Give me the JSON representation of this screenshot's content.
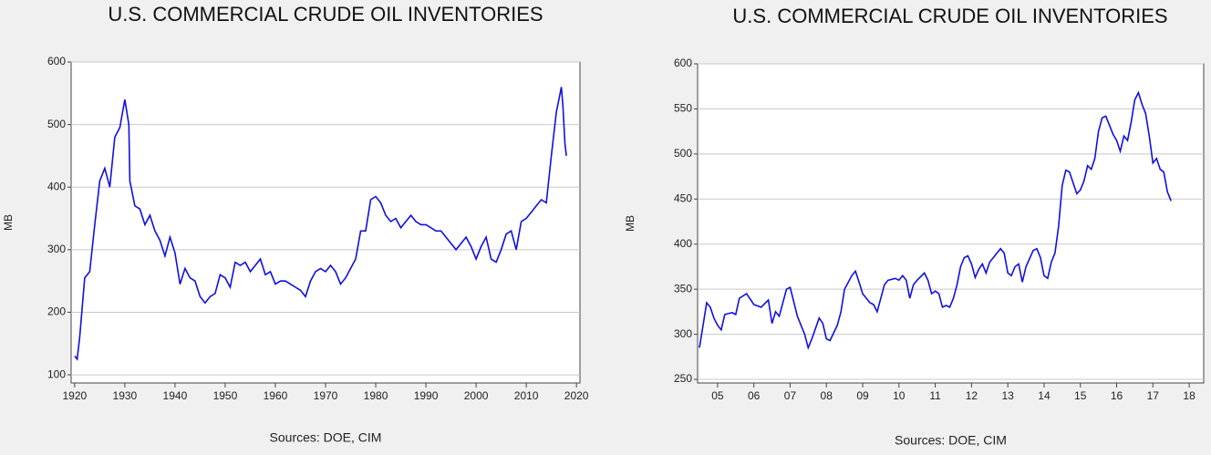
{
  "chart_data": [
    {
      "type": "line",
      "title": "U.S. COMMERCIAL CRUDE OIL INVENTORIES",
      "y_label": "MB",
      "note": "Sources:  DOE, CIM",
      "color": "#1010e0",
      "grid": true,
      "xlim": [
        1919.3,
        2020.7
      ],
      "xticks": [
        1920,
        1930,
        1940,
        1950,
        1960,
        1970,
        1980,
        1990,
        2000,
        2010,
        2020
      ],
      "ylim": [
        87,
        600
      ],
      "yticks": [
        100,
        200,
        300,
        400,
        500,
        600
      ],
      "x": [
        1920,
        1920.5,
        1921,
        1922,
        1923,
        1924,
        1925,
        1926,
        1927,
        1928,
        1929,
        1930,
        1930.8,
        1931,
        1932,
        1933,
        1934,
        1935,
        1936,
        1937,
        1938,
        1939,
        1940,
        1941,
        1942,
        1943,
        1944,
        1945,
        1946,
        1947,
        1948,
        1949,
        1950,
        1951,
        1952,
        1953,
        1954,
        1955,
        1956,
        1957,
        1958,
        1959,
        1960,
        1961,
        1962,
        1963,
        1964,
        1965,
        1966,
        1967,
        1968,
        1969,
        1970,
        1971,
        1972,
        1973,
        1974,
        1975,
        1976,
        1977,
        1978,
        1979,
        1980,
        1981,
        1982,
        1983,
        1984,
        1985,
        1986,
        1987,
        1988,
        1989,
        1990,
        1991,
        1992,
        1993,
        1994,
        1995,
        1996,
        1997,
        1998,
        1999,
        2000,
        2001,
        2002,
        2003,
        2004,
        2005,
        2006,
        2007,
        2008,
        2009,
        2010,
        2011,
        2012,
        2013,
        2014,
        2015,
        2016,
        2016.5,
        2017,
        2017.3,
        2017.7,
        2018
      ],
      "values": [
        130,
        125,
        160,
        255,
        265,
        340,
        410,
        430,
        400,
        480,
        495,
        540,
        500,
        410,
        370,
        365,
        340,
        355,
        330,
        315,
        290,
        320,
        295,
        245,
        270,
        255,
        250,
        225,
        215,
        225,
        230,
        260,
        255,
        240,
        280,
        275,
        280,
        265,
        275,
        285,
        260,
        265,
        245,
        250,
        250,
        245,
        240,
        235,
        225,
        250,
        265,
        270,
        265,
        275,
        265,
        245,
        255,
        270,
        285,
        330,
        330,
        380,
        385,
        375,
        355,
        345,
        350,
        335,
        345,
        355,
        345,
        340,
        340,
        335,
        330,
        330,
        320,
        310,
        300,
        310,
        320,
        305,
        285,
        305,
        320,
        285,
        280,
        300,
        325,
        330,
        300,
        345,
        350,
        360,
        370,
        380,
        375,
        450,
        520,
        540,
        560,
        530,
        470,
        450
      ]
    },
    {
      "type": "line",
      "title": "U.S. COMMERCIAL CRUDE OIL INVENTORIES",
      "y_label": "MB",
      "note": "Sources:  DOE, CIM",
      "color": "#1010e0",
      "grid": true,
      "xlim": [
        2004.95,
        2018.9
      ],
      "xticks": [
        {
          "value": 2005.5,
          "label": "05"
        },
        {
          "value": 2006.5,
          "label": "06"
        },
        {
          "value": 2007.5,
          "label": "07"
        },
        {
          "value": 2008.5,
          "label": "08"
        },
        {
          "value": 2009.5,
          "label": "09"
        },
        {
          "value": 2010.5,
          "label": "10"
        },
        {
          "value": 2011.5,
          "label": "11"
        },
        {
          "value": 2012.5,
          "label": "12"
        },
        {
          "value": 2013.5,
          "label": "13"
        },
        {
          "value": 2014.5,
          "label": "14"
        },
        {
          "value": 2015.5,
          "label": "15"
        },
        {
          "value": 2016.5,
          "label": "16"
        },
        {
          "value": 2017.5,
          "label": "17"
        },
        {
          "value": 2018.5,
          "label": "18"
        }
      ],
      "ylim": [
        246,
        600
      ],
      "yticks": [
        250,
        300,
        350,
        400,
        450,
        500,
        550,
        600
      ],
      "x": [
        2005.0,
        2005.1,
        2005.2,
        2005.3,
        2005.4,
        2005.5,
        2005.6,
        2005.7,
        2005.9,
        2006.0,
        2006.1,
        2006.3,
        2006.5,
        2006.7,
        2006.9,
        2007.0,
        2007.1,
        2007.2,
        2007.4,
        2007.5,
        2007.7,
        2007.8,
        2007.9,
        2008.0,
        2008.1,
        2008.3,
        2008.4,
        2008.5,
        2008.6,
        2008.8,
        2008.9,
        2009.0,
        2009.2,
        2009.3,
        2009.4,
        2009.5,
        2009.7,
        2009.8,
        2009.9,
        2010.0,
        2010.1,
        2010.2,
        2010.4,
        2010.5,
        2010.6,
        2010.7,
        2010.8,
        2010.9,
        2011.0,
        2011.2,
        2011.3,
        2011.4,
        2011.5,
        2011.6,
        2011.7,
        2011.8,
        2011.9,
        2012.0,
        2012.1,
        2012.2,
        2012.3,
        2012.4,
        2012.5,
        2012.6,
        2012.7,
        2012.8,
        2012.9,
        2013.0,
        2013.2,
        2013.3,
        2013.4,
        2013.5,
        2013.6,
        2013.7,
        2013.8,
        2013.9,
        2014.0,
        2014.2,
        2014.3,
        2014.4,
        2014.5,
        2014.6,
        2014.7,
        2014.8,
        2014.9,
        2015.0,
        2015.1,
        2015.2,
        2015.3,
        2015.4,
        2015.5,
        2015.6,
        2015.7,
        2015.8,
        2015.9,
        2016.0,
        2016.1,
        2016.2,
        2016.3,
        2016.4,
        2016.5,
        2016.6,
        2016.7,
        2016.8,
        2016.9,
        2017.0,
        2017.1,
        2017.2,
        2017.3,
        2017.4,
        2017.5,
        2017.6,
        2017.7,
        2017.8,
        2017.9,
        2018.0
      ],
      "values": [
        285,
        310,
        335,
        330,
        318,
        310,
        305,
        322,
        324,
        322,
        340,
        345,
        333,
        330,
        338,
        312,
        325,
        320,
        350,
        352,
        320,
        310,
        300,
        285,
        295,
        318,
        312,
        295,
        293,
        310,
        325,
        350,
        365,
        370,
        358,
        345,
        335,
        333,
        325,
        340,
        355,
        360,
        362,
        360,
        365,
        360,
        340,
        355,
        360,
        368,
        360,
        345,
        348,
        345,
        330,
        332,
        330,
        340,
        355,
        375,
        385,
        387,
        378,
        363,
        372,
        378,
        368,
        380,
        390,
        395,
        390,
        368,
        365,
        375,
        378,
        358,
        375,
        393,
        395,
        385,
        365,
        362,
        380,
        390,
        420,
        465,
        482,
        480,
        468,
        456,
        460,
        470,
        487,
        483,
        495,
        525,
        540,
        542,
        532,
        522,
        515,
        503,
        520,
        515,
        535,
        560,
        568,
        555,
        545,
        520,
        490,
        495,
        483,
        480,
        458,
        448
      ]
    }
  ]
}
